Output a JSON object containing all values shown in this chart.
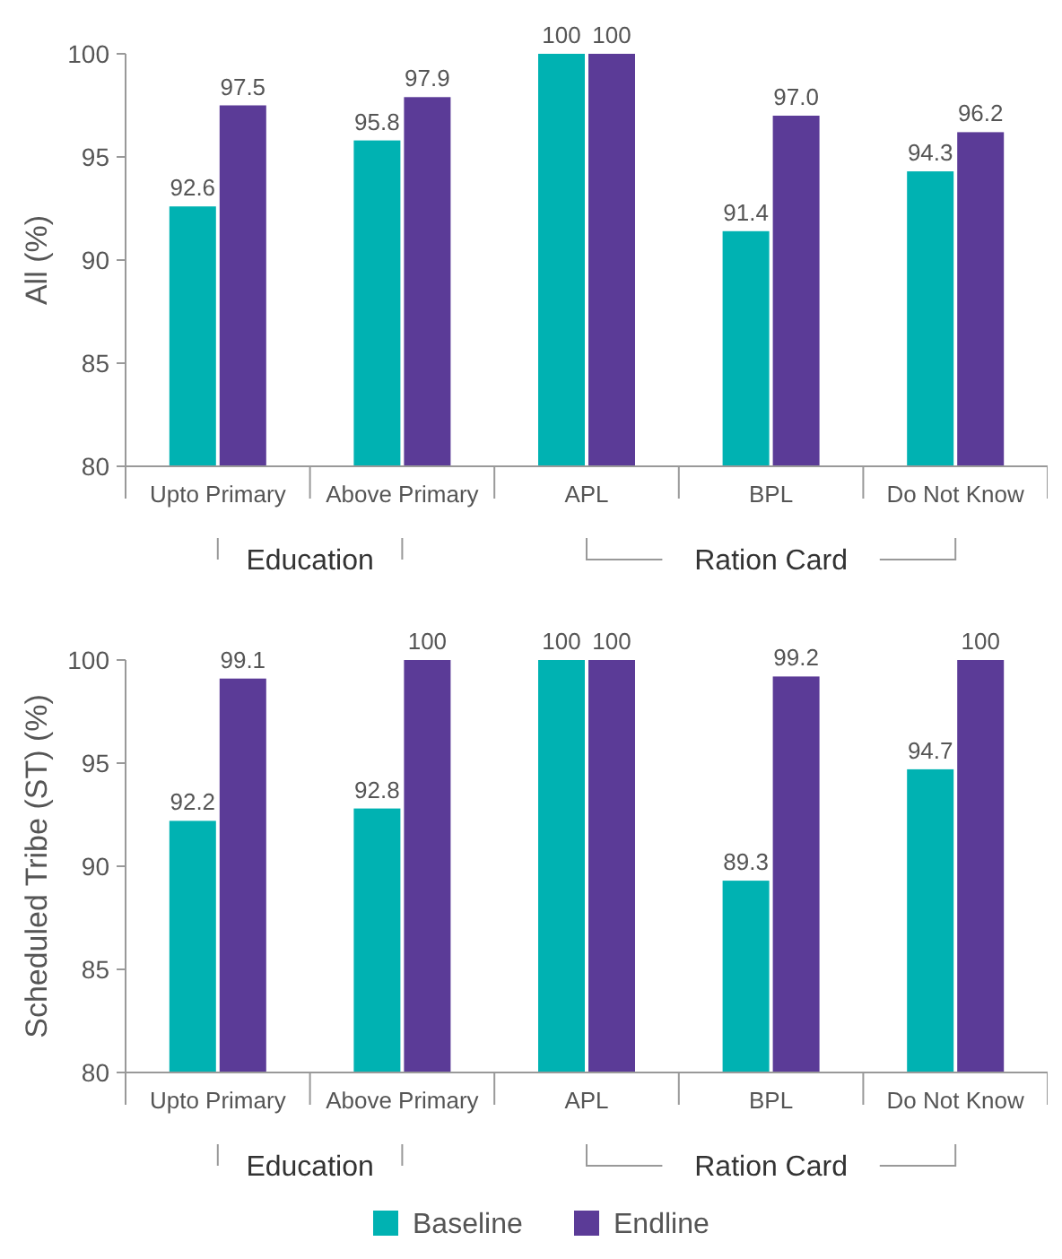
{
  "chart_data": [
    {
      "type": "bar",
      "ylabel": "All (%)",
      "categories": [
        "Upto Primary",
        "Above Primary",
        "APL",
        "BPL",
        "Do Not Know"
      ],
      "series": [
        {
          "color": "#00b2b2",
          "values": [
            92.6,
            95.8,
            100,
            91.4,
            94.3
          ],
          "value_labels": [
            "92.6",
            "95.8",
            "100",
            "91.4",
            "94.3"
          ]
        },
        {
          "color": "#5b3b97",
          "values": [
            97.5,
            97.9,
            100,
            97.0,
            96.2
          ],
          "value_labels": [
            "97.5",
            "97.9",
            "100",
            "97.0",
            "96.2"
          ]
        }
      ],
      "ylim": [
        80,
        100
      ],
      "yticks": [
        80,
        85,
        90,
        95,
        100
      ],
      "grid": false,
      "legend": false,
      "annotations": [
        "Education",
        "Ration Card"
      ]
    },
    {
      "type": "bar",
      "ylabel": "Scheduled Tribe (ST) (%)",
      "categories": [
        "Upto Primary",
        "Above Primary",
        "APL",
        "BPL",
        "Do Not Know"
      ],
      "series": [
        {
          "name": "Baseline",
          "color": "#00b2b2",
          "values": [
            92.2,
            92.8,
            100,
            89.3,
            94.7
          ],
          "value_labels": [
            "92.2",
            "92.8",
            "100",
            "89.3",
            "94.7"
          ]
        },
        {
          "name": "Endline",
          "color": "#5b3b97",
          "values": [
            99.1,
            100,
            100,
            99.2,
            100
          ],
          "value_labels": [
            "99.1",
            "100",
            "100",
            "99.2",
            "100"
          ]
        }
      ],
      "ylim": [
        80,
        100
      ],
      "yticks": [
        80,
        85,
        90,
        95,
        100
      ],
      "grid": false,
      "legend": "bottom",
      "annotations": [
        "Education",
        "Ration Card"
      ]
    }
  ]
}
